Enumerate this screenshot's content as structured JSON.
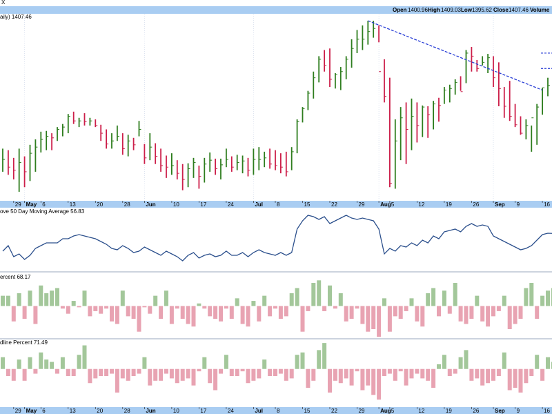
{
  "header": {
    "symbol_fragment": "X",
    "open_label": "Open",
    "open_value": "1400.96",
    "high_label": "High",
    "high_value": "1409.03",
    "low_label": "Low",
    "low_value": "1395.62",
    "close_label": "Close",
    "close_value": "1407.46",
    "volume_label": "Volume"
  },
  "panels": {
    "price_label": "aily) 1407.46",
    "ma_label": "ove 50 Day Moving Average 56.83",
    "adv_label": "ercent 68.17",
    "decl_label": "dline Percent 71.49"
  },
  "x_axis": {
    "ticks": [
      {
        "label": "29",
        "month": false
      },
      {
        "label": "May",
        "month": true
      },
      {
        "label": "6",
        "month": false
      },
      {
        "label": "13",
        "month": false
      },
      {
        "label": "20",
        "month": false
      },
      {
        "label": "28",
        "month": false
      },
      {
        "label": "Jun",
        "month": true
      },
      {
        "label": "10",
        "month": false
      },
      {
        "label": "17",
        "month": false
      },
      {
        "label": "24",
        "month": false
      },
      {
        "label": "Jul",
        "month": true
      },
      {
        "label": "8",
        "month": false
      },
      {
        "label": "15",
        "month": false
      },
      {
        "label": "22",
        "month": false
      },
      {
        "label": "29",
        "month": false
      },
      {
        "label": "Aug",
        "month": true
      },
      {
        "label": "5",
        "month": false
      },
      {
        "label": "12",
        "month": false
      },
      {
        "label": "19",
        "month": false
      },
      {
        "label": "26",
        "month": false
      },
      {
        "label": "Sep",
        "month": true
      },
      {
        "label": "9",
        "month": false
      },
      {
        "label": "16",
        "month": false
      }
    ]
  },
  "colors": {
    "up": "#2e7d1e",
    "down": "#cc1f4a",
    "ma_line": "#2b4f8c",
    "trend": "#2a3fd6",
    "adv_bar": "#a3c79a",
    "decl_bar": "#e8a3b2",
    "header_bg": "#a9cdf2",
    "axis_bg": "#a9cdf2",
    "grid": "#c8d3e6"
  },
  "chart_data": [
    {
      "type": "ohlc",
      "title": "",
      "x": [
        "Apr 25",
        "Apr 26",
        "Apr 29",
        "Apr 30",
        "May 1",
        "May 2",
        "May 3",
        "May 6",
        "May 7",
        "May 8",
        "May 9",
        "May 10",
        "May 13",
        "May 14",
        "May 15",
        "May 16",
        "May 17",
        "May 20",
        "May 21",
        "May 22",
        "May 23",
        "May 24",
        "May 28",
        "May 29",
        "May 30",
        "May 31",
        "Jun 3",
        "Jun 4",
        "Jun 5",
        "Jun 6",
        "Jun 7",
        "Jun 10",
        "Jun 11",
        "Jun 12",
        "Jun 13",
        "Jun 14",
        "Jun 17",
        "Jun 18",
        "Jun 19",
        "Jun 20",
        "Jun 21",
        "Jun 24",
        "Jun 25",
        "Jun 26",
        "Jun 27",
        "Jun 28",
        "Jul 1",
        "Jul 2",
        "Jul 3",
        "Jul 5",
        "Jul 8",
        "Jul 9",
        "Jul 10",
        "Jul 11",
        "Jul 12",
        "Jul 15",
        "Jul 16",
        "Jul 17",
        "Jul 18",
        "Jul 19",
        "Jul 22",
        "Jul 23",
        "Jul 24",
        "Jul 25",
        "Jul 26",
        "Jul 29",
        "Jul 30",
        "Jul 31",
        "Aug 1",
        "Aug 2",
        "Aug 5",
        "Aug 6",
        "Aug 7",
        "Aug 8",
        "Aug 9",
        "Aug 12",
        "Aug 13",
        "Aug 14",
        "Aug 15",
        "Aug 16",
        "Aug 19",
        "Aug 20",
        "Aug 21",
        "Aug 22",
        "Aug 23",
        "Aug 26",
        "Aug 27",
        "Aug 28",
        "Aug 29",
        "Aug 30",
        "Sep 3",
        "Sep 4",
        "Sep 5",
        "Sep 6",
        "Sep 9",
        "Sep 10",
        "Sep 11",
        "Sep 12",
        "Sep 13",
        "Sep 16",
        "Sep 17",
        "Sep 18"
      ],
      "high": [
        1320,
        1318,
        1308,
        1320,
        1310,
        1325,
        1332,
        1342,
        1343,
        1340,
        1348,
        1352,
        1365,
        1368,
        1360,
        1366,
        1360,
        1358,
        1351,
        1345,
        1340,
        1350,
        1340,
        1338,
        1334,
        1356,
        1326,
        1340,
        1327,
        1320,
        1311,
        1314,
        1305,
        1300,
        1301,
        1308,
        1298,
        1308,
        1315,
        1307,
        1307,
        1320,
        1310,
        1312,
        1311,
        1308,
        1320,
        1322,
        1316,
        1320,
        1318,
        1314,
        1316,
        1322,
        1358,
        1374,
        1395,
        1420,
        1440,
        1448,
        1450,
        1418,
        1426,
        1440,
        1462,
        1474,
        1480,
        1486,
        1486,
        1480,
        1436,
        1412,
        1358,
        1374,
        1380,
        1385,
        1380,
        1376,
        1375,
        1382,
        1386,
        1400,
        1403,
        1410,
        1414,
        1448,
        1452,
        1435,
        1440,
        1443,
        1440,
        1432,
        1400,
        1408,
        1378,
        1362,
        1358,
        1350,
        1378,
        1399,
        1412,
        1420
      ],
      "low": [
        1290,
        1286,
        1280,
        1264,
        1270,
        1278,
        1290,
        1315,
        1318,
        1318,
        1330,
        1336,
        1340,
        1352,
        1348,
        1350,
        1350,
        1348,
        1330,
        1320,
        1320,
        1330,
        1312,
        1310,
        1318,
        1336,
        1300,
        1305,
        1300,
        1290,
        1282,
        1286,
        1280,
        1266,
        1270,
        1282,
        1268,
        1276,
        1290,
        1286,
        1280,
        1296,
        1290,
        1292,
        1288,
        1284,
        1286,
        1292,
        1296,
        1294,
        1292,
        1288,
        1284,
        1292,
        1314,
        1354,
        1370,
        1385,
        1406,
        1420,
        1400,
        1398,
        1396,
        1410,
        1425,
        1444,
        1448,
        1455,
        1464,
        1458,
        1380,
        1270,
        1268,
        1305,
        1300,
        1318,
        1328,
        1335,
        1334,
        1345,
        1355,
        1378,
        1380,
        1390,
        1395,
        1405,
        1420,
        1420,
        1428,
        1418,
        1400,
        1375,
        1360,
        1356,
        1348,
        1338,
        1332,
        1316,
        1325,
        1364,
        1388,
        1400
      ],
      "close": [
        1306,
        1296,
        1292,
        1302,
        1290,
        1314,
        1322,
        1332,
        1336,
        1334,
        1345,
        1348,
        1362,
        1356,
        1356,
        1355,
        1356,
        1350,
        1340,
        1326,
        1330,
        1336,
        1320,
        1330,
        1325,
        1345,
        1308,
        1322,
        1310,
        1298,
        1296,
        1298,
        1288,
        1280,
        1294,
        1302,
        1284,
        1300,
        1305,
        1294,
        1299,
        1306,
        1296,
        1302,
        1304,
        1292,
        1306,
        1306,
        1308,
        1300,
        1298,
        1296,
        1290,
        1316,
        1355,
        1372,
        1392,
        1412,
        1436,
        1428,
        1410,
        1416,
        1420,
        1436,
        1450,
        1462,
        1462,
        1472,
        1476,
        1420,
        1388,
        1275,
        1330,
        1360,
        1345,
        1362,
        1350,
        1374,
        1364,
        1378,
        1376,
        1396,
        1398,
        1406,
        1394,
        1444,
        1440,
        1424,
        1432,
        1438,
        1412,
        1398,
        1375,
        1362,
        1351,
        1340,
        1350,
        1360,
        1374,
        1399,
        1402,
        1407.46
      ],
      "ylim": [
        1255,
        1495
      ],
      "trendline": {
        "from": [
          "Jul 31",
          1486
        ],
        "to": [
          "Sep 16",
          1396
        ]
      },
      "markers": [
        1444,
        1424
      ]
    },
    {
      "type": "line",
      "title": "",
      "name": "",
      "values": [
        44,
        48,
        40,
        42,
        38,
        41,
        46,
        48,
        50,
        50,
        50,
        53,
        53,
        55,
        56,
        55,
        54,
        53,
        51,
        49,
        46,
        45,
        48,
        46,
        43,
        44,
        47,
        45,
        43,
        41,
        44,
        42,
        40,
        37,
        41,
        43,
        39,
        41,
        42,
        40,
        41,
        44,
        41,
        41,
        43,
        40,
        43,
        45,
        43,
        42,
        41,
        43,
        41,
        43,
        60,
        66,
        70,
        69,
        67,
        69,
        64,
        66,
        68,
        70,
        68,
        67,
        68,
        67,
        66,
        60,
        42,
        46,
        44,
        48,
        47,
        50,
        48,
        52,
        50,
        55,
        53,
        58,
        59,
        60,
        58,
        62,
        64,
        62,
        63,
        62,
        55,
        53,
        51,
        49,
        47,
        45,
        46,
        48,
        52,
        56,
        57,
        56.83
      ],
      "ylim": [
        30,
        75
      ]
    },
    {
      "type": "bar",
      "title": "",
      "name": "",
      "values": [
        8,
        8,
        -12,
        10,
        -10,
        12,
        -14,
        16,
        10,
        12,
        14,
        -2,
        -6,
        4,
        -1,
        12,
        -8,
        -4,
        -6,
        -2,
        -12,
        -14,
        12,
        -8,
        -10,
        -20,
        -1,
        -6,
        8,
        -10,
        12,
        -14,
        -2,
        -10,
        -14,
        -16,
        2,
        -2,
        -8,
        -10,
        -12,
        -2,
        -10,
        6,
        -14,
        -16,
        4,
        -12,
        8,
        -8,
        -2,
        -10,
        -8,
        10,
        14,
        -20,
        -4,
        18,
        20,
        -4,
        16,
        -2,
        10,
        -12,
        -10,
        -2,
        -14,
        -20,
        -18,
        -24,
        6,
        -20,
        -8,
        -10,
        -4,
        6,
        -12,
        -16,
        10,
        14,
        -8,
        12,
        -6,
        18,
        -12,
        -14,
        -10,
        8,
        -12,
        -16,
        -8,
        -4,
        8,
        -18,
        -14,
        -10,
        14,
        18,
        -10,
        8,
        12,
        14
      ],
      "ylim": [
        -25,
        25
      ]
    },
    {
      "type": "bar",
      "title": "",
      "name": "",
      "values": [
        10,
        -6,
        -10,
        8,
        -10,
        10,
        -4,
        14,
        8,
        6,
        -4,
        10,
        -6,
        -6,
        12,
        20,
        -12,
        -8,
        -6,
        -6,
        -4,
        -20,
        -8,
        -10,
        -6,
        -4,
        10,
        -14,
        -10,
        -10,
        -4,
        -8,
        -12,
        -10,
        -8,
        -14,
        -2,
        10,
        -12,
        -18,
        -4,
        12,
        -6,
        -6,
        -2,
        -12,
        -10,
        -8,
        8,
        -6,
        -6,
        -4,
        -10,
        -8,
        12,
        14,
        -16,
        -10,
        16,
        22,
        -20,
        -10,
        -12,
        -8,
        -14,
        -2,
        -18,
        -14,
        -22,
        -26,
        -6,
        -4,
        -10,
        -2,
        -14,
        -8,
        -4,
        -8,
        -10,
        -16,
        4,
        12,
        -6,
        -4,
        10,
        16,
        -10,
        -8,
        -14,
        -12,
        -10,
        -6,
        14,
        -18,
        -16,
        -20,
        -12,
        -6,
        12,
        -10,
        10,
        6
      ],
      "ylim": [
        -30,
        25
      ]
    }
  ]
}
